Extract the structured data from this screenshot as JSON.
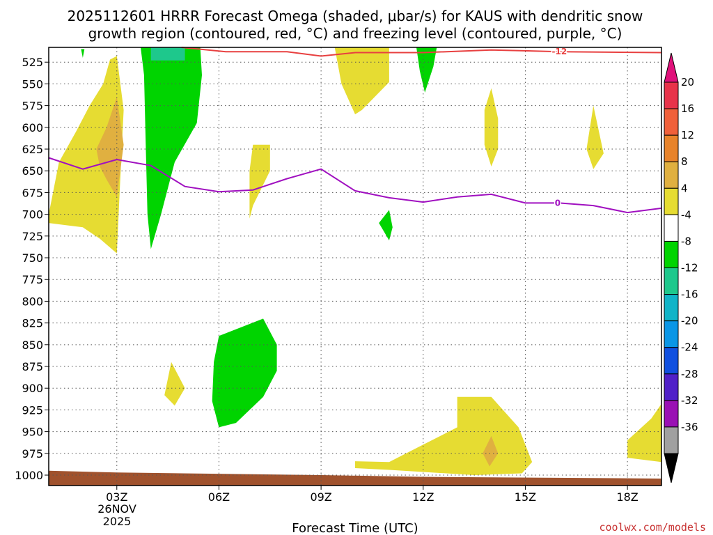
{
  "chart_data": {
    "type": "contour",
    "title_lines": [
      "2025112601 HRRR Forecast Omega (shaded, μbar/s) for KAUS with dendritic snow",
      "growth region (contoured, red, °C) and freezing level (contoured, purple, °C)"
    ],
    "xlabel": "Forecast Time (UTC)",
    "ylabel": "",
    "credit": "coolwx.com/models",
    "x_range_hours": [
      1,
      19
    ],
    "x_ticks": [
      {
        "hour": 3,
        "label": "03Z"
      },
      {
        "hour": 6,
        "label": "06Z"
      },
      {
        "hour": 9,
        "label": "09Z"
      },
      {
        "hour": 12,
        "label": "12Z"
      },
      {
        "hour": 15,
        "label": "15Z"
      },
      {
        "hour": 18,
        "label": "18Z"
      }
    ],
    "date_label": [
      "26NOV",
      "2025"
    ],
    "y_ticks_hpa": [
      525,
      550,
      575,
      600,
      625,
      650,
      675,
      700,
      725,
      750,
      775,
      800,
      825,
      850,
      875,
      900,
      925,
      950,
      975,
      1000
    ],
    "y_range_hpa": [
      508,
      1012
    ],
    "colorbar": {
      "ticks": [
        "20",
        "16",
        "12",
        "8",
        "4",
        "-4",
        "-8",
        "-12",
        "-16",
        "-20",
        "-24",
        "-28",
        "-32",
        "-36"
      ],
      "colors": [
        "#e8334a",
        "#f0603a",
        "#e8832a",
        "#e0b040",
        "#e6dc32",
        "#ffffff",
        "#00d400",
        "#1ec88c",
        "#10b4c8",
        "#0a96e6",
        "#1050e0",
        "#5020c8",
        "#9a10b4",
        "#a0a0a0"
      ],
      "top_arrow_color": "#e0107a",
      "bottom_arrow_color": "#000000"
    },
    "contours": [
      {
        "name": "dendritic -12C",
        "color": "#e84040",
        "label": "-12",
        "points": [
          [
            4.9,
            508
          ],
          [
            6.2,
            513
          ],
          [
            8.0,
            513
          ],
          [
            9.0,
            518
          ],
          [
            10.0,
            514
          ],
          [
            12.0,
            514
          ],
          [
            14.0,
            511
          ],
          [
            16.0,
            513
          ],
          [
            19.0,
            514
          ]
        ]
      },
      {
        "name": "freezing level 0C",
        "color": "#a010c0",
        "label": "0",
        "points": [
          [
            1.0,
            635
          ],
          [
            2.0,
            648
          ],
          [
            3.0,
            637
          ],
          [
            4.0,
            644
          ],
          [
            5.0,
            668
          ],
          [
            6.0,
            674
          ],
          [
            7.0,
            672
          ],
          [
            8.0,
            659
          ],
          [
            9.0,
            648
          ],
          [
            10.0,
            673
          ],
          [
            11.0,
            681
          ],
          [
            12.0,
            686
          ],
          [
            13.0,
            680
          ],
          [
            14.0,
            677
          ],
          [
            15.0,
            687
          ],
          [
            16.0,
            687
          ],
          [
            17.0,
            690
          ],
          [
            18.0,
            698
          ],
          [
            19.0,
            693
          ]
        ]
      }
    ],
    "omega_regions": [
      {
        "value_bin": "4 to 8",
        "color": "#e6dc32",
        "points": [
          [
            1.0,
            700
          ],
          [
            1.3,
            640
          ],
          [
            1.8,
            605
          ],
          [
            2.2,
            575
          ],
          [
            2.6,
            550
          ],
          [
            2.8,
            522
          ],
          [
            3.0,
            518
          ],
          [
            3.2,
            580
          ],
          [
            3.1,
            660
          ],
          [
            3.0,
            745
          ],
          [
            2.5,
            728
          ],
          [
            2.0,
            715
          ],
          [
            1.4,
            712
          ],
          [
            1.0,
            710
          ]
        ]
      },
      {
        "value_bin": "8 to 12",
        "color": "#e0b040",
        "points": [
          [
            2.4,
            625
          ],
          [
            2.7,
            600
          ],
          [
            3.0,
            565
          ],
          [
            3.2,
            620
          ],
          [
            3.0,
            680
          ],
          [
            2.7,
            660
          ],
          [
            2.5,
            645
          ]
        ]
      },
      {
        "value_bin": "-8 to -4",
        "color": "#00d400",
        "points": [
          [
            1.95,
            510
          ],
          [
            2.05,
            510
          ],
          [
            2.0,
            520
          ]
        ]
      },
      {
        "value_bin": "-8 to -4",
        "color": "#00d400",
        "points": [
          [
            3.7,
            508
          ],
          [
            5.45,
            508
          ],
          [
            5.5,
            540
          ],
          [
            5.35,
            595
          ],
          [
            4.7,
            640
          ],
          [
            4.3,
            700
          ],
          [
            4.0,
            740
          ],
          [
            3.9,
            700
          ],
          [
            3.85,
            620
          ],
          [
            3.8,
            540
          ]
        ]
      },
      {
        "value_bin": "-12 to -8",
        "color": "#1ec88c",
        "points": [
          [
            4.0,
            508
          ],
          [
            5.0,
            508
          ],
          [
            5.0,
            523
          ],
          [
            4.0,
            523
          ]
        ]
      },
      {
        "value_bin": "4 to 8",
        "color": "#e6dc32",
        "points": [
          [
            7.0,
            620
          ],
          [
            7.5,
            620
          ],
          [
            7.5,
            650
          ],
          [
            7.0,
            690
          ],
          [
            6.9,
            705
          ],
          [
            6.9,
            650
          ]
        ]
      },
      {
        "value_bin": "4 to 8",
        "color": "#e6dc32",
        "points": [
          [
            9.4,
            508
          ],
          [
            11.0,
            508
          ],
          [
            11.0,
            548
          ],
          [
            10.2,
            580
          ],
          [
            10.0,
            585
          ],
          [
            9.6,
            550
          ]
        ]
      },
      {
        "value_bin": "-8 to -4",
        "color": "#00d400",
        "points": [
          [
            11.8,
            508
          ],
          [
            12.4,
            508
          ],
          [
            12.3,
            530
          ],
          [
            12.05,
            560
          ],
          [
            11.9,
            535
          ]
        ]
      },
      {
        "value_bin": "-8 to -4",
        "color": "#00d400",
        "points": [
          [
            11.0,
            695
          ],
          [
            11.1,
            715
          ],
          [
            11.0,
            730
          ],
          [
            10.7,
            710
          ]
        ]
      },
      {
        "value_bin": "4 to 8",
        "color": "#e6dc32",
        "points": [
          [
            14.0,
            555
          ],
          [
            14.2,
            590
          ],
          [
            14.2,
            625
          ],
          [
            14.0,
            645
          ],
          [
            13.8,
            620
          ],
          [
            13.8,
            580
          ]
        ]
      },
      {
        "value_bin": "4 to 8",
        "color": "#e6dc32",
        "points": [
          [
            17.0,
            575
          ],
          [
            17.3,
            630
          ],
          [
            17.0,
            648
          ],
          [
            16.8,
            625
          ]
        ]
      },
      {
        "value_bin": "4 to 8",
        "color": "#e6dc32",
        "points": [
          [
            4.6,
            870
          ],
          [
            5.0,
            900
          ],
          [
            4.7,
            920
          ],
          [
            4.4,
            908
          ]
        ]
      },
      {
        "value_bin": "-8 to -4",
        "color": "#00d400",
        "points": [
          [
            6.0,
            840
          ],
          [
            7.3,
            820
          ],
          [
            7.7,
            850
          ],
          [
            7.7,
            880
          ],
          [
            7.3,
            910
          ],
          [
            6.5,
            940
          ],
          [
            6.0,
            945
          ],
          [
            5.8,
            915
          ],
          [
            5.85,
            870
          ]
        ]
      },
      {
        "value_bin": "4 to 8",
        "color": "#e6dc32",
        "points": [
          [
            11.0,
            985
          ],
          [
            12.0,
            965
          ],
          [
            13.0,
            945
          ],
          [
            13.0,
            910
          ],
          [
            14.0,
            910
          ],
          [
            14.8,
            945
          ],
          [
            15.2,
            985
          ],
          [
            14.9,
            998
          ],
          [
            13.5,
            1000
          ],
          [
            11.0,
            994
          ],
          [
            10.0,
            992
          ],
          [
            10.0,
            984
          ]
        ]
      },
      {
        "value_bin": "8 to 12",
        "color": "#e0b040",
        "points": [
          [
            14.0,
            955
          ],
          [
            14.2,
            975
          ],
          [
            13.95,
            990
          ],
          [
            13.75,
            975
          ]
        ]
      },
      {
        "value_bin": "4 to 8",
        "color": "#e6dc32",
        "points": [
          [
            19.0,
            918
          ],
          [
            19.0,
            985
          ],
          [
            18.0,
            980
          ],
          [
            18.0,
            960
          ],
          [
            18.7,
            935
          ]
        ]
      }
    ],
    "ground": {
      "color": "#a0522d",
      "points": [
        [
          1.0,
          995
        ],
        [
          3.0,
          997
        ],
        [
          9.0,
          1000
        ],
        [
          12.0,
          1002
        ],
        [
          19.0,
          1004
        ]
      ]
    }
  }
}
